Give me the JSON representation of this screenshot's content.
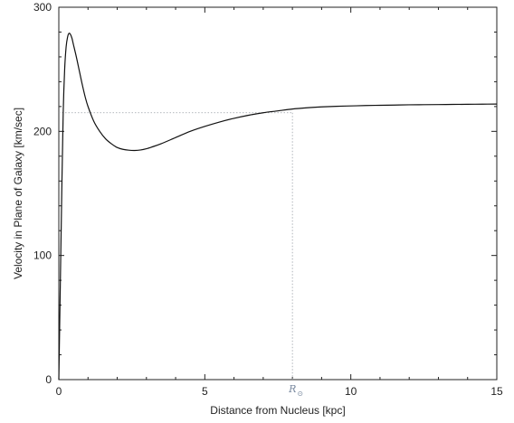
{
  "chart_data": {
    "type": "line",
    "xlabel": "Distance from Nucleus [kpc]",
    "ylabel": "Velocity in Plane of Galaxy [km/sec]",
    "xlim": [
      0,
      15
    ],
    "ylim": [
      0,
      300
    ],
    "x_ticks": [
      0,
      5,
      10,
      15
    ],
    "y_ticks": [
      0,
      100,
      200,
      300
    ],
    "grid": false,
    "series": [
      {
        "x": [
          0,
          0.05,
          0.1,
          0.15,
          0.2,
          0.25,
          0.3,
          0.35,
          0.4,
          0.45,
          0.5,
          0.6,
          0.7,
          0.8,
          0.9,
          1.0,
          1.2,
          1.4,
          1.6,
          1.8,
          2.0,
          2.2,
          2.4,
          2.6,
          2.8,
          3.0,
          3.2,
          3.5,
          4.0,
          4.5,
          5.0,
          5.5,
          6.0,
          6.5,
          7.0,
          7.5,
          8.0,
          8.5,
          9.0,
          9.5,
          10.0,
          10.5,
          11.0,
          11.5,
          12.0,
          12.5,
          13.0,
          13.5,
          14.0,
          14.5,
          15.0
        ],
        "y": [
          0,
          75,
          150,
          215,
          250,
          268,
          276,
          279,
          278,
          275,
          270,
          260,
          249,
          238,
          228,
          220,
          208,
          200,
          194,
          190,
          187,
          185.5,
          184.8,
          184.6,
          185,
          186,
          187.5,
          190,
          195,
          200,
          204,
          207.5,
          210.5,
          213,
          215,
          216.5,
          218,
          219,
          219.7,
          220.2,
          220.5,
          220.8,
          221,
          221.2,
          221.4,
          221.5,
          221.6,
          221.7,
          221.8,
          221.9,
          222
        ]
      }
    ],
    "reference_lines": {
      "x": 8,
      "y": 215
    },
    "annotations": [
      {
        "text": "R",
        "subscript": "⊙",
        "x": 8
      }
    ]
  }
}
